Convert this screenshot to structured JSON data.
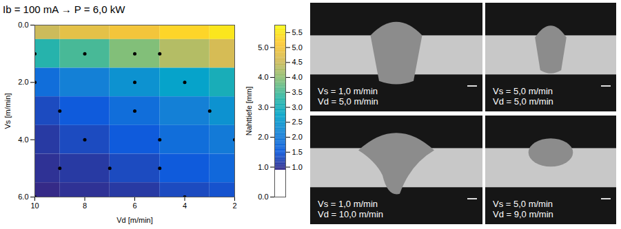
{
  "chart_data": {
    "type": "heatmap",
    "title": "Ib = 100 mA → P = 6,0 kW",
    "x_label": "Vd [m/min]",
    "y_label": "Vs [m/min]",
    "z_label": "Nahttiefe [mm]",
    "xlim": [
      10,
      2
    ],
    "xticks": [
      2,
      4,
      6,
      8,
      10
    ],
    "ylim": [
      6,
      0
    ],
    "yticks": [
      0,
      2,
      4,
      6
    ],
    "zlim": [
      0,
      5.75
    ],
    "zticks": [
      0,
      1,
      2,
      3,
      4,
      5
    ],
    "surface": {
      "vs": [
        0,
        1,
        2,
        3,
        4,
        5,
        6
      ],
      "vd": [
        2,
        4,
        6,
        8,
        10
      ],
      "depth": [
        [
          5.5,
          5.3,
          5.0,
          4.8,
          4.5
        ],
        [
          4.6,
          4.3,
          3.9,
          3.5,
          3.2
        ],
        [
          3.0,
          2.7,
          2.4,
          2.1,
          1.8
        ],
        [
          2.4,
          2.1,
          1.8,
          1.5,
          1.3
        ],
        [
          2.0,
          1.8,
          1.5,
          1.3,
          1.1
        ],
        [
          1.7,
          1.5,
          1.3,
          1.1,
          1.0
        ],
        [
          1.4,
          1.3,
          1.1,
          1.0,
          0.9
        ]
      ]
    },
    "points": {
      "vs": [
        1,
        1,
        1,
        1,
        2,
        2,
        2,
        3,
        3,
        3,
        4,
        4,
        4,
        5,
        5,
        5,
        6,
        6
      ],
      "vd": [
        5,
        6,
        8,
        10,
        4,
        6,
        10,
        3,
        6,
        9,
        2,
        5,
        8,
        5,
        7,
        9,
        4,
        10
      ]
    },
    "colorbar": {
      "range": [
        0.9,
        5.75
      ],
      "ticks": [
        1,
        1.5,
        2,
        2.5,
        3,
        3.5,
        4,
        4.5,
        5,
        5.5
      ]
    },
    "photos": [
      {
        "labels": [
          "Vs = 1,0 m/min",
          "Vd = 5,0 m/min"
        ]
      },
      {
        "labels": [
          "Vs = 5,0 m/min",
          "Vd = 5,0 m/min"
        ]
      },
      {
        "labels": [
          "Vs = 1,0 m/min",
          "Vd = 10,0 m/min"
        ]
      },
      {
        "labels": [
          "Vs = 5,0 m/min",
          "Vd = 9,0 m/min"
        ]
      }
    ]
  }
}
